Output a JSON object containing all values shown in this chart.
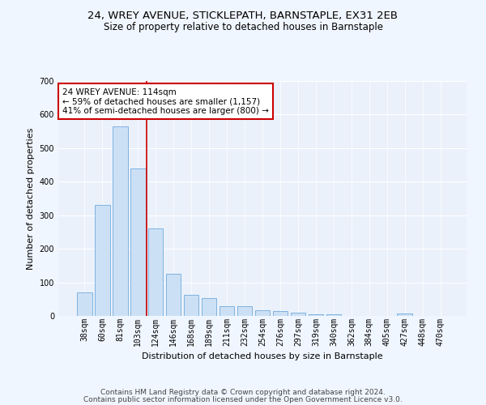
{
  "title1": "24, WREY AVENUE, STICKLEPATH, BARNSTAPLE, EX31 2EB",
  "title2": "Size of property relative to detached houses in Barnstaple",
  "xlabel": "Distribution of detached houses by size in Barnstaple",
  "ylabel": "Number of detached properties",
  "categories": [
    "38sqm",
    "60sqm",
    "81sqm",
    "103sqm",
    "124sqm",
    "146sqm",
    "168sqm",
    "189sqm",
    "211sqm",
    "232sqm",
    "254sqm",
    "276sqm",
    "297sqm",
    "319sqm",
    "340sqm",
    "362sqm",
    "384sqm",
    "405sqm",
    "427sqm",
    "448sqm",
    "470sqm"
  ],
  "values": [
    70,
    330,
    565,
    440,
    260,
    125,
    62,
    53,
    30,
    28,
    16,
    14,
    10,
    6,
    5,
    0,
    0,
    0,
    7,
    0,
    0
  ],
  "bar_color": "#cce0f5",
  "bar_edge_color": "#7fb3e0",
  "vline_x": 3.5,
  "vline_color": "#cc0000",
  "annotation_text": "24 WREY AVENUE: 114sqm\n← 59% of detached houses are smaller (1,157)\n41% of semi-detached houses are larger (800) →",
  "annotation_box_color": "#cc0000",
  "ylim": [
    0,
    700
  ],
  "yticks": [
    0,
    100,
    200,
    300,
    400,
    500,
    600,
    700
  ],
  "background_color": "#eaf1fb",
  "grid_color": "#ffffff",
  "footer1": "Contains HM Land Registry data © Crown copyright and database right 2024.",
  "footer2": "Contains public sector information licensed under the Open Government Licence v3.0.",
  "title_fontsize": 9.5,
  "subtitle_fontsize": 8.5,
  "label_fontsize": 8,
  "tick_fontsize": 7,
  "annot_fontsize": 7.5,
  "footer_fontsize": 6.5
}
